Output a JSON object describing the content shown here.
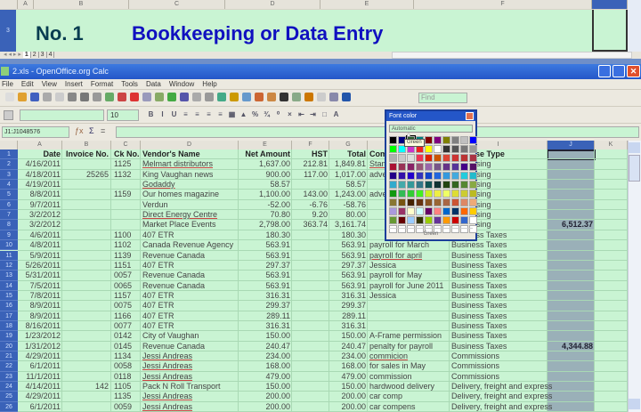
{
  "background_sheet": {
    "columns": [
      "A",
      "B",
      "C",
      "D",
      "E",
      "F"
    ],
    "row_number": "3",
    "number_label": "No. 1",
    "heading": "Bookkeeping or Data Entry",
    "sheet_tabs": [
      "1",
      "2",
      "3",
      "4"
    ],
    "colors": {
      "number": "#083c50",
      "heading": "#1010c0"
    }
  },
  "window": {
    "title": "2.xls - OpenOffice.org Calc",
    "menu": [
      "File",
      "Edit",
      "View",
      "Insert",
      "Format",
      "Tools",
      "Data",
      "Window",
      "Help"
    ],
    "find_placeholder": "Find",
    "font_size": "10",
    "name_box": "J1:J1048576",
    "formula_icons": [
      "function-wizard-icon",
      "sum-icon",
      "equals-icon"
    ],
    "formula_symbols": [
      "ƒx",
      "Σ",
      "="
    ]
  },
  "grid": {
    "columns": [
      "A",
      "B",
      "C",
      "D",
      "E",
      "F",
      "G",
      "H",
      "I",
      "J",
      "K"
    ],
    "header_row": [
      "Date",
      "Invoice No.",
      "Ck No.",
      "Vendor's Name",
      "Net Amount",
      "HST",
      "Total",
      "Comments",
      "Expense Type",
      "",
      ""
    ],
    "rows": [
      [
        "4/16/2011",
        "",
        "1125",
        "Melmart distributors",
        "1,637.00",
        "212.81",
        "1,849.81",
        "Stam",
        "Advertising",
        ""
      ],
      [
        "4/18/2011",
        "25265",
        "1132",
        "King Vaughan news",
        "900.00",
        "117.00",
        "1,017.00",
        "adve",
        "Advertising",
        ""
      ],
      [
        "4/19/2011",
        "",
        "",
        "Godaddy",
        "58.57",
        "",
        "58.57",
        "",
        "Advertising",
        ""
      ],
      [
        "8/8/2011",
        "",
        "1159",
        "Our homes magazine",
        "1,100.00",
        "143.00",
        "1,243.00",
        "adve",
        "Advertising",
        ""
      ],
      [
        "9/7/2011",
        "",
        "",
        "Verdun",
        "-52.00",
        "-6.76",
        "-58.76",
        "",
        "Advertising",
        ""
      ],
      [
        "3/2/2012",
        "",
        "",
        "Direct Energy Centre",
        "70.80",
        "9.20",
        "80.00",
        "",
        "Advertising",
        ""
      ],
      [
        "3/2/2012",
        "",
        "",
        "Market Place Events",
        "2,798.00",
        "363.74",
        "3,161.74",
        "",
        "Advertising",
        "6,512.37"
      ],
      [
        "4/6/2011",
        "",
        "1100",
        "407 ETR",
        "180.30",
        "",
        "180.30",
        "",
        "Business Taxes",
        ""
      ],
      [
        "4/8/2011",
        "",
        "1102",
        "Canada Revenue Agency",
        "563.91",
        "",
        "563.91",
        "payroll for March",
        "Business Taxes",
        ""
      ],
      [
        "5/9/2011",
        "",
        "1139",
        "Revenue Canada",
        "563.91",
        "",
        "563.91",
        "payroll for april",
        "Business Taxes",
        ""
      ],
      [
        "5/26/2011",
        "",
        "1151",
        "407 ETR",
        "297.37",
        "",
        "297.37",
        "Jessica",
        "Business Taxes",
        ""
      ],
      [
        "5/31/2011",
        "",
        "0057",
        "Revenue Canada",
        "563.91",
        "",
        "563.91",
        "payroll for May",
        "Business Taxes",
        ""
      ],
      [
        "7/5/2011",
        "",
        "0065",
        "Revenue Canada",
        "563.91",
        "",
        "563.91",
        "payroll for June 2011",
        "Business Taxes",
        ""
      ],
      [
        "7/8/2011",
        "",
        "1157",
        "407 ETR",
        "316.31",
        "",
        "316.31",
        "Jessica",
        "Business Taxes",
        ""
      ],
      [
        "8/9/2011",
        "",
        "0075",
        "407 ETR",
        "299.37",
        "",
        "299.37",
        "",
        "Business Taxes",
        ""
      ],
      [
        "8/9/2011",
        "",
        "1166",
        "407 ETR",
        "289.11",
        "",
        "289.11",
        "",
        "Business Taxes",
        ""
      ],
      [
        "8/16/2011",
        "",
        "0077",
        "407 ETR",
        "316.31",
        "",
        "316.31",
        "",
        "Business Taxes",
        ""
      ],
      [
        "1/23/2012",
        "",
        "0142",
        "City of Vaughan",
        "150.00",
        "",
        "150.00",
        "A-Frame permission",
        "Business Taxes",
        ""
      ],
      [
        "1/31/2012",
        "",
        "0145",
        "Revenue Canada",
        "240.47",
        "",
        "240.47",
        "penalty for payroll",
        "Business Taxes",
        "4,344.88"
      ],
      [
        "4/29/2011",
        "",
        "1134",
        "Jessi Andreas",
        "234.00",
        "",
        "234.00",
        "commicion",
        "Commissions",
        ""
      ],
      [
        "6/1/2011",
        "",
        "0058",
        "Jessi Andreas",
        "168.00",
        "",
        "168.00",
        "for sales in May",
        "Commissions",
        ""
      ],
      [
        "11/1/2011",
        "",
        "0118",
        "Jessi Andreas",
        "479.00",
        "",
        "479.00",
        "commission",
        "Commissions",
        ""
      ],
      [
        "4/14/2011",
        "142",
        "1105",
        "Pack N Roll Transport",
        "150.00",
        "",
        "150.00",
        "hardwood delivery",
        "Delivery, freight and express",
        ""
      ],
      [
        "4/29/2011",
        "",
        "1135",
        "Jessi Andreas",
        "200.00",
        "",
        "200.00",
        "car comp",
        "Delivery, freight and express",
        ""
      ],
      [
        "6/1/2011",
        "",
        "0059",
        "Jessi Andreas",
        "200.00",
        "",
        "200.00",
        "car compens",
        "Delivery, freight and express",
        ""
      ]
    ],
    "selected_column": "J",
    "colors": {
      "cell_bg": "#c9f4d3",
      "row_header": "#3a62b8",
      "selected_column": "#9ab0b8"
    }
  },
  "font_color_popup": {
    "title": "Font color",
    "automatic_label": "Automatic",
    "tooltip": "Green",
    "selected_name": "Green",
    "palette": [
      "#000000",
      "#000080",
      "#2e5e2e",
      "#008080",
      "#800000",
      "#800080",
      "#808000",
      "#808080",
      "#c0c0c0",
      "#0000ff",
      "#00ff00",
      "#00ffff",
      "#cc33cc",
      "#ee2222",
      "#ffff00",
      "#ffffff",
      "#333333",
      "#555555",
      "#777777",
      "#999999",
      "#b0b0b0",
      "#c8c8c8",
      "#dddddd",
      "#ee3355",
      "#dd2200",
      "#cc5500",
      "#dd4433",
      "#cc3333",
      "#bb3333",
      "#aa3344",
      "#aa1133",
      "#993355",
      "#882266",
      "#995577",
      "#9966aa",
      "#775588",
      "#663388",
      "#553399",
      "#440088",
      "#551166",
      "#220088",
      "#3311aa",
      "#2200cc",
      "#3333bb",
      "#1144cc",
      "#2266dd",
      "#3399dd",
      "#44aadd",
      "#22ccdd",
      "#22bbcc",
      "#33aacc",
      "#44aaaa",
      "#339999",
      "#337788",
      "#115555",
      "#113333",
      "#224411",
      "#336622",
      "#558833",
      "#88aa44",
      "#119911",
      "#33bb55",
      "#33cc33",
      "#44ee22",
      "#ccee22",
      "#eeee44",
      "#eeff66",
      "#dddd33",
      "#cccc33",
      "#bbbb22",
      "#887733",
      "#775511",
      "#442200",
      "#663311",
      "#885522",
      "#996633",
      "#aa6644",
      "#cc5533",
      "#dd8866",
      "#eeaa77",
      "#aa99dd",
      "#993366",
      "#ffffcc",
      "#ccffff",
      "#660066",
      "#ff8080",
      "#0066cc",
      "#003366",
      "#ff6600",
      "#ffcc00",
      "#669933",
      "#660000",
      "#99ccff",
      "#333300",
      "#99cc00",
      "#663399",
      "#ff9900",
      "#cc0000",
      "#3366cc",
      "#ffffff",
      "#ffffff",
      "#ffffff",
      "#ffffff",
      "#ffffff",
      "#ffffff",
      "#ffffff",
      "#ffffff",
      "#ffffff",
      "#ffffff",
      "#ffffff"
    ]
  }
}
